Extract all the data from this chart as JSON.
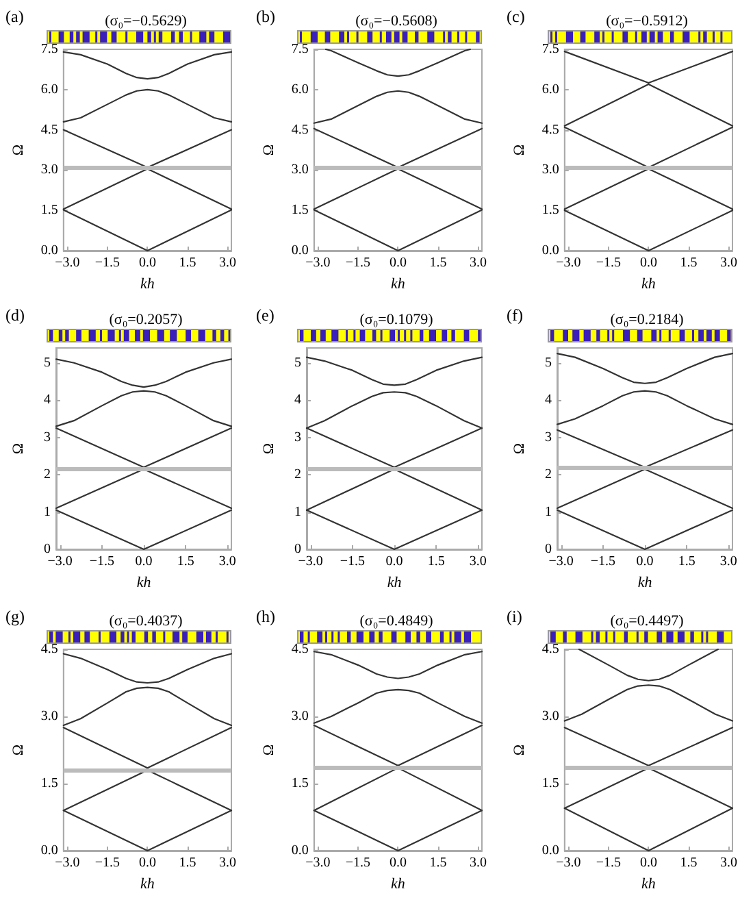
{
  "chart_data": [
    {
      "type": "line",
      "title": "(σ₀=−0.5629)",
      "xlabel": "kh",
      "ylabel": "Ω",
      "annotations": [
        "(a)"
      ],
      "xlim": [
        -3.14,
        3.14
      ],
      "ylim": [
        0,
        7.5
      ],
      "xticks": [
        {
          "value": -3,
          "label": "−3.0"
        },
        {
          "value": -1.5,
          "label": "−1.5"
        },
        {
          "value": 0,
          "label": "0.0"
        },
        {
          "value": 1.5,
          "label": "1.5"
        },
        {
          "value": 3,
          "label": "3.0"
        }
      ],
      "yticks": [
        {
          "value": 0,
          "label": "0.0"
        },
        1.5,
        {
          "value": 3,
          "label": "3.0"
        },
        4.5,
        {
          "value": 6,
          "label": "6.0"
        },
        7.5
      ],
      "marker": "none",
      "line_style": "solid",
      "ref_lines": [
        {
          "axis": "y",
          "value": 3.1,
          "color": "#bbbbbb"
        }
      ],
      "series": [
        {
          "color": "#333333",
          "x": [
            -3.14,
            0,
            3.14
          ],
          "values": [
            1.52,
            0,
            1.52
          ]
        },
        {
          "color": "#333333",
          "x": [
            -3.14,
            0,
            3.14
          ],
          "values": [
            1.55,
            3.05,
            1.55
          ]
        },
        {
          "color": "#333333",
          "x": [
            -3.14,
            0,
            3.14
          ],
          "values": [
            4.5,
            3.1,
            4.5
          ]
        },
        {
          "color": "#333333",
          "x": [
            -3.14,
            -2.5,
            -1.5,
            -0.8,
            -0.4,
            0,
            0.4,
            0.8,
            1.5,
            2.5,
            3.14
          ],
          "values": [
            4.8,
            4.95,
            5.45,
            5.8,
            5.95,
            6.0,
            5.95,
            5.8,
            5.45,
            4.95,
            4.8
          ]
        },
        {
          "color": "#333333",
          "x": [
            -3.14,
            -2.5,
            -1.5,
            -0.8,
            -0.4,
            0,
            0.4,
            0.8,
            1.5,
            2.5,
            3.14
          ],
          "values": [
            7.4,
            7.3,
            6.95,
            6.6,
            6.45,
            6.4,
            6.45,
            6.6,
            6.95,
            7.3,
            7.4
          ]
        }
      ]
    },
    {
      "type": "line",
      "title": "(σ₀=−0.5608)",
      "xlabel": "kh",
      "ylabel": "Ω",
      "annotations": [
        "(b)"
      ],
      "xlim": [
        -3.14,
        3.14
      ],
      "ylim": [
        0,
        7.5
      ],
      "xticks": [
        {
          "value": -3,
          "label": "−3.0"
        },
        {
          "value": -1.5,
          "label": "−1.5"
        },
        {
          "value": 0,
          "label": "0.0"
        },
        {
          "value": 1.5,
          "label": "1.5"
        },
        {
          "value": 3,
          "label": "3.0"
        }
      ],
      "yticks": [
        {
          "value": 0,
          "label": "0.0"
        },
        1.5,
        {
          "value": 3,
          "label": "3.0"
        },
        4.5,
        {
          "value": 6,
          "label": "6.0"
        },
        7.5
      ],
      "marker": "none",
      "line_style": "solid",
      "ref_lines": [
        {
          "axis": "y",
          "value": 3.1,
          "color": "#bbbbbb"
        }
      ],
      "series": [
        {
          "color": "#333333",
          "x": [
            -3.14,
            0,
            3.14
          ],
          "values": [
            1.52,
            0,
            1.52
          ]
        },
        {
          "color": "#333333",
          "x": [
            -3.14,
            0,
            3.14
          ],
          "values": [
            1.55,
            3.05,
            1.55
          ]
        },
        {
          "color": "#333333",
          "x": [
            -3.14,
            0,
            3.14
          ],
          "values": [
            4.55,
            3.1,
            4.55
          ]
        },
        {
          "color": "#333333",
          "x": [
            -3.14,
            -2.5,
            -1.5,
            -0.8,
            -0.4,
            0,
            0.4,
            0.8,
            1.5,
            2.5,
            3.14
          ],
          "values": [
            4.75,
            4.9,
            5.4,
            5.75,
            5.9,
            5.95,
            5.9,
            5.75,
            5.4,
            4.9,
            4.75
          ]
        },
        {
          "color": "#333333",
          "x": [
            -2.7,
            -2.5,
            -1.5,
            -0.8,
            -0.4,
            0,
            0.4,
            0.8,
            1.5,
            2.5,
            2.7
          ],
          "values": [
            7.5,
            7.45,
            7.0,
            6.7,
            6.55,
            6.5,
            6.55,
            6.7,
            7.0,
            7.45,
            7.5
          ]
        }
      ]
    },
    {
      "type": "line",
      "title": "(σ₀=−0.5912)",
      "xlabel": "kh",
      "ylabel": "Ω",
      "annotations": [
        "(c)"
      ],
      "xlim": [
        -3.14,
        3.14
      ],
      "ylim": [
        0,
        7.5
      ],
      "xticks": [
        {
          "value": -3,
          "label": "−3.0"
        },
        {
          "value": -1.5,
          "label": "−1.5"
        },
        {
          "value": 0,
          "label": "0.0"
        },
        {
          "value": 1.5,
          "label": "1.5"
        },
        {
          "value": 3,
          "label": "3.0"
        }
      ],
      "yticks": [
        {
          "value": 0,
          "label": "0.0"
        },
        1.5,
        {
          "value": 3,
          "label": "3.0"
        },
        4.5,
        {
          "value": 6,
          "label": "6.0"
        },
        7.5
      ],
      "marker": "none",
      "line_style": "solid",
      "ref_lines": [
        {
          "axis": "y",
          "value": 3.1,
          "color": "#bbbbbb"
        }
      ],
      "series": [
        {
          "color": "#333333",
          "x": [
            -3.14,
            0,
            3.14
          ],
          "values": [
            1.5,
            0,
            1.5
          ]
        },
        {
          "color": "#333333",
          "x": [
            -3.14,
            0,
            3.14
          ],
          "values": [
            1.55,
            3.05,
            1.55
          ]
        },
        {
          "color": "#333333",
          "x": [
            -3.14,
            0,
            3.14
          ],
          "values": [
            4.6,
            3.1,
            4.6
          ]
        },
        {
          "color": "#333333",
          "x": [
            -3.14,
            0,
            3.14
          ],
          "values": [
            4.65,
            6.2,
            4.65
          ]
        },
        {
          "color": "#333333",
          "x": [
            -3.14,
            0,
            3.14
          ],
          "values": [
            7.42,
            6.25,
            7.42
          ]
        }
      ]
    },
    {
      "type": "line",
      "title": "(σ₀=0.2057)",
      "xlabel": "kh",
      "ylabel": "Ω",
      "annotations": [
        "(d)"
      ],
      "xlim": [
        -3.14,
        3.14
      ],
      "ylim": [
        0,
        5.4
      ],
      "xticks": [
        {
          "value": -3,
          "label": "−3.0"
        },
        {
          "value": -1.5,
          "label": "−1.5"
        },
        {
          "value": 0,
          "label": "0.0"
        },
        {
          "value": 1.5,
          "label": "1.5"
        },
        {
          "value": 3,
          "label": "3.0"
        }
      ],
      "yticks": [
        0,
        1,
        2,
        3,
        4,
        5
      ],
      "marker": "none",
      "line_style": "solid",
      "ref_lines": [
        {
          "axis": "y",
          "value": 2.15,
          "color": "#bbbbbb"
        }
      ],
      "series": [
        {
          "color": "#333333",
          "x": [
            -3.14,
            0,
            3.14
          ],
          "values": [
            1.05,
            0,
            1.05
          ]
        },
        {
          "color": "#333333",
          "x": [
            -3.14,
            0,
            3.14
          ],
          "values": [
            1.1,
            2.15,
            1.1
          ]
        },
        {
          "color": "#333333",
          "x": [
            -3.14,
            0,
            3.14
          ],
          "values": [
            3.25,
            2.2,
            3.25
          ]
        },
        {
          "color": "#333333",
          "x": [
            -3.14,
            -2.5,
            -1.5,
            -0.8,
            -0.4,
            0,
            0.4,
            0.8,
            1.5,
            2.5,
            3.14
          ],
          "values": [
            3.3,
            3.45,
            3.85,
            4.12,
            4.22,
            4.25,
            4.22,
            4.12,
            3.85,
            3.45,
            3.3
          ]
        },
        {
          "color": "#333333",
          "x": [
            -3.14,
            -2.5,
            -1.5,
            -0.8,
            -0.4,
            0,
            0.4,
            0.8,
            1.5,
            2.5,
            3.14
          ],
          "values": [
            5.1,
            5.0,
            4.75,
            4.5,
            4.4,
            4.35,
            4.4,
            4.5,
            4.75,
            5.0,
            5.1
          ]
        }
      ]
    },
    {
      "type": "line",
      "title": "(σ₀=0.1079)",
      "xlabel": "kh",
      "ylabel": "Ω",
      "annotations": [
        "(e)"
      ],
      "xlim": [
        -3.14,
        3.14
      ],
      "ylim": [
        0,
        5.4
      ],
      "xticks": [
        {
          "value": -3,
          "label": "−3.0"
        },
        {
          "value": -1.5,
          "label": "−1.5"
        },
        {
          "value": 0,
          "label": "0.0"
        },
        {
          "value": 1.5,
          "label": "1.5"
        },
        {
          "value": 3,
          "label": "3.0"
        }
      ],
      "yticks": [
        0,
        1,
        2,
        3,
        4,
        5
      ],
      "marker": "none",
      "line_style": "solid",
      "ref_lines": [
        {
          "axis": "y",
          "value": 2.15,
          "color": "#bbbbbb"
        }
      ],
      "series": [
        {
          "color": "#333333",
          "x": [
            -3.14,
            0,
            3.14
          ],
          "values": [
            1.05,
            0,
            1.05
          ]
        },
        {
          "color": "#333333",
          "x": [
            -3.14,
            0,
            3.14
          ],
          "values": [
            1.05,
            2.15,
            1.05
          ]
        },
        {
          "color": "#333333",
          "x": [
            -3.14,
            0,
            3.14
          ],
          "values": [
            3.25,
            2.2,
            3.25
          ]
        },
        {
          "color": "#333333",
          "x": [
            -3.14,
            -2.5,
            -1.5,
            -0.8,
            -0.4,
            0,
            0.4,
            0.8,
            1.5,
            2.5,
            3.14
          ],
          "values": [
            3.25,
            3.45,
            3.85,
            4.1,
            4.2,
            4.22,
            4.2,
            4.1,
            3.85,
            3.45,
            3.25
          ]
        },
        {
          "color": "#333333",
          "x": [
            -3.14,
            -2.5,
            -1.5,
            -0.8,
            -0.4,
            0,
            0.4,
            0.8,
            1.5,
            2.5,
            3.14
          ],
          "values": [
            5.15,
            5.05,
            4.8,
            4.55,
            4.43,
            4.4,
            4.43,
            4.55,
            4.8,
            5.05,
            5.15
          ]
        }
      ]
    },
    {
      "type": "line",
      "title": "(σ₀=0.2184)",
      "xlabel": "kh",
      "ylabel": "Ω",
      "annotations": [
        "(f)"
      ],
      "xlim": [
        -3.14,
        3.14
      ],
      "ylim": [
        0,
        5.4
      ],
      "xticks": [
        {
          "value": -3,
          "label": "−3.0"
        },
        {
          "value": -1.5,
          "label": "−1.5"
        },
        {
          "value": 0,
          "label": "0.0"
        },
        {
          "value": 1.5,
          "label": "1.5"
        },
        {
          "value": 3,
          "label": "3.0"
        }
      ],
      "yticks": [
        0,
        1,
        2,
        3,
        4,
        5
      ],
      "marker": "none",
      "line_style": "solid",
      "ref_lines": [
        {
          "axis": "y",
          "value": 2.2,
          "color": "#bbbbbb"
        }
      ],
      "series": [
        {
          "color": "#333333",
          "x": [
            -3.14,
            0,
            3.14
          ],
          "values": [
            1.05,
            0,
            1.05
          ]
        },
        {
          "color": "#333333",
          "x": [
            -3.14,
            0,
            3.14
          ],
          "values": [
            1.1,
            2.15,
            1.1
          ]
        },
        {
          "color": "#333333",
          "x": [
            -3.14,
            0,
            3.14
          ],
          "values": [
            3.2,
            2.2,
            3.2
          ]
        },
        {
          "color": "#333333",
          "x": [
            -3.14,
            -2.5,
            -1.5,
            -0.8,
            -0.4,
            0,
            0.4,
            0.8,
            1.5,
            2.5,
            3.14
          ],
          "values": [
            3.35,
            3.5,
            3.85,
            4.12,
            4.22,
            4.25,
            4.22,
            4.12,
            3.85,
            3.5,
            3.35
          ]
        },
        {
          "color": "#333333",
          "x": [
            -3.14,
            -2.5,
            -1.5,
            -0.8,
            -0.4,
            0,
            0.4,
            0.8,
            1.5,
            2.5,
            3.14
          ],
          "values": [
            5.25,
            5.15,
            4.85,
            4.6,
            4.48,
            4.45,
            4.48,
            4.6,
            4.85,
            5.15,
            5.25
          ]
        }
      ]
    },
    {
      "type": "line",
      "title": "(σ₀=0.4037)",
      "xlabel": "kh",
      "ylabel": "Ω",
      "annotations": [
        "(g)"
      ],
      "xlim": [
        -3.14,
        3.14
      ],
      "ylim": [
        0,
        4.5
      ],
      "xticks": [
        {
          "value": -3,
          "label": "−3.0"
        },
        {
          "value": -1.5,
          "label": "−1.5"
        },
        {
          "value": 0,
          "label": "0.0"
        },
        {
          "value": 1.5,
          "label": "1.5"
        },
        {
          "value": 3,
          "label": "3.0"
        }
      ],
      "yticks": [
        {
          "value": 0,
          "label": "0.0"
        },
        1.5,
        {
          "value": 3,
          "label": "3.0"
        },
        4.5
      ],
      "marker": "none",
      "line_style": "solid",
      "ref_lines": [
        {
          "axis": "y",
          "value": 1.8,
          "color": "#bbbbbb"
        }
      ],
      "series": [
        {
          "color": "#333333",
          "x": [
            -3.14,
            0,
            3.14
          ],
          "values": [
            0.9,
            0,
            0.9
          ]
        },
        {
          "color": "#333333",
          "x": [
            -3.14,
            0,
            3.14
          ],
          "values": [
            0.9,
            1.8,
            0.9
          ]
        },
        {
          "color": "#333333",
          "x": [
            -3.14,
            0,
            3.14
          ],
          "values": [
            2.75,
            1.85,
            2.75
          ]
        },
        {
          "color": "#333333",
          "x": [
            -3.14,
            -2.5,
            -1.5,
            -0.8,
            -0.4,
            0,
            0.4,
            0.8,
            1.5,
            2.5,
            3.14
          ],
          "values": [
            2.8,
            2.95,
            3.3,
            3.55,
            3.63,
            3.65,
            3.63,
            3.55,
            3.3,
            2.95,
            2.8
          ]
        },
        {
          "color": "#333333",
          "x": [
            -3.14,
            -2.5,
            -1.5,
            -0.8,
            -0.4,
            0,
            0.4,
            0.8,
            1.5,
            2.5,
            3.14
          ],
          "values": [
            4.4,
            4.3,
            4.05,
            3.85,
            3.77,
            3.75,
            3.77,
            3.85,
            4.05,
            4.3,
            4.4
          ]
        }
      ]
    },
    {
      "type": "line",
      "title": "(σ₀=0.4849)",
      "xlabel": "kh",
      "ylabel": "Ω",
      "annotations": [
        "(h)"
      ],
      "xlim": [
        -3.14,
        3.14
      ],
      "ylim": [
        0,
        4.5
      ],
      "xticks": [
        {
          "value": -3,
          "label": "−3.0"
        },
        {
          "value": -1.5,
          "label": "−1.5"
        },
        {
          "value": 0,
          "label": "0.0"
        },
        {
          "value": 1.5,
          "label": "1.5"
        },
        {
          "value": 3,
          "label": "3.0"
        }
      ],
      "yticks": [
        {
          "value": 0,
          "label": "0.0"
        },
        1.5,
        {
          "value": 3,
          "label": "3.0"
        },
        4.5
      ],
      "marker": "none",
      "line_style": "solid",
      "ref_lines": [
        {
          "axis": "y",
          "value": 1.85,
          "color": "#bbbbbb"
        }
      ],
      "series": [
        {
          "color": "#333333",
          "x": [
            -3.14,
            0,
            3.14
          ],
          "values": [
            0.9,
            0,
            0.9
          ]
        },
        {
          "color": "#333333",
          "x": [
            -3.14,
            0,
            3.14
          ],
          "values": [
            0.9,
            1.85,
            0.9
          ]
        },
        {
          "color": "#333333",
          "x": [
            -3.14,
            0,
            3.14
          ],
          "values": [
            2.8,
            1.9,
            2.8
          ]
        },
        {
          "color": "#333333",
          "x": [
            -3.14,
            -2.5,
            -1.5,
            -0.8,
            -0.4,
            0,
            0.4,
            0.8,
            1.5,
            2.5,
            3.14
          ],
          "values": [
            2.85,
            3.0,
            3.3,
            3.52,
            3.58,
            3.6,
            3.58,
            3.52,
            3.3,
            3.0,
            2.85
          ]
        },
        {
          "color": "#333333",
          "x": [
            -3.14,
            -2.5,
            -1.5,
            -0.8,
            -0.4,
            0,
            0.4,
            0.8,
            1.5,
            2.5,
            3.14
          ],
          "values": [
            4.45,
            4.38,
            4.15,
            3.95,
            3.88,
            3.85,
            3.88,
            3.95,
            4.15,
            4.38,
            4.45
          ]
        }
      ]
    },
    {
      "type": "line",
      "title": "(σ₀=0.4497)",
      "xlabel": "kh",
      "ylabel": "Ω",
      "annotations": [
        "(i)"
      ],
      "xlim": [
        -3.14,
        3.14
      ],
      "ylim": [
        0,
        4.5
      ],
      "xticks": [
        {
          "value": -3,
          "label": "−3.0"
        },
        {
          "value": -1.5,
          "label": "−1.5"
        },
        {
          "value": 0,
          "label": "0.0"
        },
        {
          "value": 1.5,
          "label": "1.5"
        },
        {
          "value": 3,
          "label": "3.0"
        }
      ],
      "yticks": [
        {
          "value": 0,
          "label": "0.0"
        },
        1.5,
        {
          "value": 3,
          "label": "3.0"
        },
        4.5
      ],
      "marker": "none",
      "line_style": "solid",
      "ref_lines": [
        {
          "axis": "y",
          "value": 1.85,
          "color": "#bbbbbb"
        }
      ],
      "series": [
        {
          "color": "#333333",
          "x": [
            -3.14,
            0,
            3.14
          ],
          "values": [
            0.95,
            0,
            0.95
          ]
        },
        {
          "color": "#333333",
          "x": [
            -3.14,
            0,
            3.14
          ],
          "values": [
            0.95,
            1.85,
            0.95
          ]
        },
        {
          "color": "#333333",
          "x": [
            -3.14,
            0,
            3.14
          ],
          "values": [
            2.75,
            1.9,
            2.75
          ]
        },
        {
          "color": "#333333",
          "x": [
            -3.14,
            -2.5,
            -1.5,
            -0.8,
            -0.4,
            0,
            0.4,
            0.8,
            1.5,
            2.5,
            3.14
          ],
          "values": [
            2.9,
            3.05,
            3.38,
            3.6,
            3.68,
            3.7,
            3.68,
            3.6,
            3.38,
            3.05,
            2.9
          ]
        },
        {
          "color": "#333333",
          "x": [
            -2.6,
            -2.5,
            -1.5,
            -0.8,
            -0.4,
            0,
            0.4,
            0.8,
            1.5,
            2.5,
            2.6
          ],
          "values": [
            4.5,
            4.47,
            4.15,
            3.92,
            3.83,
            3.8,
            3.83,
            3.92,
            4.15,
            4.47,
            4.5
          ]
        }
      ]
    }
  ]
}
